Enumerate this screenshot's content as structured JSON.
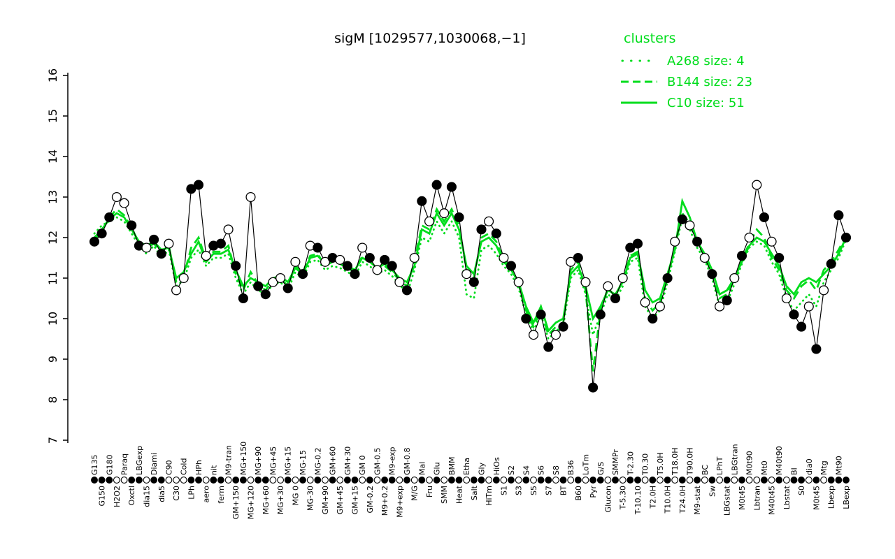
{
  "title": "sigM [1029577,1030068,−1]",
  "legend": {
    "title": "clusters",
    "entries": [
      {
        "label": "A268 size: 4",
        "style": "dotted"
      },
      {
        "label": "B144 size: 23",
        "style": "dashed"
      },
      {
        "label": "C10 size: 51",
        "style": "solid"
      }
    ]
  },
  "colors": {
    "cluster_green": "#00dd1c",
    "probe_line": "#000000",
    "point_filled": "#000000",
    "point_open": "#ffffff",
    "background": "#ffffff"
  },
  "chart_data": {
    "type": "line",
    "title": "sigM [1029577,1030068,−1]",
    "ylim": [
      7,
      16
    ],
    "yticks": [
      7,
      8,
      9,
      10,
      11,
      12,
      13,
      14,
      15,
      16
    ],
    "grid": false,
    "legend_position": "top-right",
    "categories": [
      "G135",
      "G150",
      "G180",
      "H2O2",
      "Paraq",
      "Oxctl",
      "LBGexp",
      "dia15",
      "Diami",
      "dia5",
      "C90",
      "C30",
      "Cold",
      "LPh",
      "HPh",
      "aero",
      "nit",
      "ferm",
      "M9-tran",
      "GM+150",
      "MG+150",
      "MG+120",
      "MG+90",
      "MG+60",
      "MG+45",
      "MG+30",
      "MG+15",
      "MG 0",
      "MG-15",
      "MG-30",
      "MG-0.2",
      "GM+90",
      "GM+60",
      "GM+45",
      "GM+30",
      "GM+15",
      "GM 0",
      "GM-0.2",
      "GM-0.5",
      "M9+0.2",
      "M9-exp",
      "M9+exp",
      "GM-0.8",
      "M/G",
      "Mal",
      "Fru",
      "Glu",
      "SMM",
      "BMM",
      "Heat",
      "Etha",
      "Salt",
      "Gly",
      "HiTm",
      "HiOs",
      "S1",
      "S2",
      "S3",
      "S4",
      "S5",
      "S6",
      "S7",
      "S8",
      "BT",
      "B36",
      "B60",
      "LoTm",
      "Pyr",
      "G/S",
      "Glucon",
      "SMMPr",
      "T-5.30",
      "T-2.30",
      "T-10.10",
      "T0.30",
      "T2.0H",
      "T5.0H",
      "T10.0H",
      "T18.0H",
      "T24.0H",
      "T90.0H",
      "M9-stat",
      "BC",
      "Sw",
      "LPhT",
      "LBGstat",
      "LBGtran",
      "M0t45",
      "M0t90",
      "Lbtran",
      "Mt0",
      "M40t45",
      "M40t90",
      "Lbstat",
      "BI",
      "S0",
      "dia0",
      "M0t45",
      "Mtg",
      "Lbexp",
      "Mt90",
      "LBexp"
    ],
    "point_fill": [
      "f",
      "f",
      "f",
      "o",
      "o",
      "f",
      "f",
      "o",
      "f",
      "f",
      "o",
      "o",
      "o",
      "f",
      "f",
      "o",
      "f",
      "f",
      "o",
      "f",
      "f",
      "o",
      "f",
      "f",
      "o",
      "o",
      "f",
      "o",
      "f",
      "o",
      "f",
      "o",
      "f",
      "o",
      "f",
      "f",
      "o",
      "f",
      "o",
      "f",
      "f",
      "o",
      "f",
      "o",
      "f",
      "o",
      "f",
      "o",
      "f",
      "f",
      "o",
      "f",
      "f",
      "o",
      "f",
      "o",
      "f",
      "o",
      "f",
      "o",
      "f",
      "f",
      "o",
      "f",
      "o",
      "f",
      "o",
      "f",
      "f",
      "o",
      "f",
      "o",
      "f",
      "f",
      "o",
      "f",
      "o",
      "f",
      "o",
      "f",
      "o",
      "f",
      "o",
      "f",
      "o",
      "f",
      "o",
      "f",
      "o",
      "o",
      "f",
      "o",
      "f",
      "o",
      "f",
      "f",
      "o",
      "f",
      "o",
      "f",
      "f",
      "f"
    ],
    "series": [
      {
        "name": "sigM probe",
        "style": "points",
        "values": [
          11.9,
          12.1,
          12.5,
          13.0,
          12.85,
          12.3,
          11.8,
          11.75,
          11.95,
          11.6,
          11.85,
          10.7,
          11.0,
          13.2,
          13.3,
          11.55,
          11.8,
          11.85,
          12.2,
          11.3,
          10.5,
          13.0,
          10.8,
          10.6,
          10.9,
          11.0,
          10.75,
          11.4,
          11.1,
          11.8,
          11.75,
          11.4,
          11.5,
          11.45,
          11.3,
          11.1,
          11.75,
          11.5,
          11.2,
          11.45,
          11.3,
          10.9,
          10.7,
          11.5,
          12.9,
          12.4,
          13.3,
          12.6,
          13.25,
          12.5,
          11.1,
          10.9,
          12.2,
          12.4,
          12.1,
          11.5,
          11.3,
          10.9,
          10.0,
          9.6,
          10.1,
          9.3,
          9.6,
          9.8,
          11.4,
          11.5,
          10.9,
          8.3,
          10.1,
          10.8,
          10.5,
          11.0,
          11.75,
          11.85,
          10.4,
          10.0,
          10.3,
          11.0,
          11.9,
          12.45,
          12.3,
          11.9,
          11.5,
          11.1,
          10.3,
          10.45,
          11.0,
          11.55,
          12.0,
          13.3,
          12.5,
          11.9,
          11.5,
          10.5,
          10.1,
          9.8,
          10.3,
          9.25,
          10.7,
          11.35,
          12.55,
          12.0
        ]
      },
      {
        "name": "A268",
        "style": "dotted",
        "values": [
          12.1,
          12.3,
          12.4,
          12.5,
          12.4,
          12.1,
          11.8,
          11.6,
          11.8,
          11.5,
          11.7,
          10.8,
          10.95,
          11.5,
          11.7,
          11.3,
          11.5,
          11.5,
          11.6,
          11.0,
          10.6,
          10.9,
          10.7,
          10.6,
          10.85,
          10.9,
          10.7,
          11.15,
          11.0,
          11.4,
          11.45,
          11.2,
          11.3,
          11.25,
          11.15,
          11.05,
          11.4,
          11.3,
          11.1,
          11.2,
          11.05,
          10.85,
          10.6,
          11.2,
          12.0,
          11.9,
          12.4,
          12.1,
          12.4,
          12.0,
          10.6,
          10.5,
          11.7,
          11.8,
          11.6,
          11.3,
          11.1,
          10.75,
          10.1,
          9.7,
          10.1,
          9.5,
          9.7,
          9.8,
          11.0,
          11.2,
          10.6,
          9.6,
          10.1,
          10.6,
          10.45,
          10.8,
          11.4,
          11.5,
          10.3,
          10.0,
          10.2,
          10.9,
          11.65,
          12.5,
          12.2,
          11.75,
          11.45,
          11.0,
          10.3,
          10.4,
          10.85,
          11.35,
          11.75,
          11.9,
          11.8,
          11.4,
          11.1,
          10.5,
          10.2,
          10.4,
          10.6,
          10.3,
          10.9,
          11.2,
          11.5,
          11.95
        ]
      },
      {
        "name": "B144",
        "style": "dashed",
        "values": [
          11.95,
          12.15,
          12.5,
          12.7,
          12.55,
          12.25,
          11.85,
          11.75,
          11.85,
          11.65,
          11.8,
          10.9,
          11.05,
          11.75,
          12.0,
          11.45,
          11.65,
          11.65,
          11.8,
          11.1,
          10.7,
          11.15,
          10.85,
          10.7,
          10.95,
          11.0,
          10.8,
          11.3,
          11.15,
          11.55,
          11.6,
          11.3,
          11.4,
          11.35,
          11.25,
          11.15,
          11.55,
          11.45,
          11.2,
          11.3,
          11.15,
          10.95,
          10.8,
          11.4,
          12.3,
          12.2,
          12.7,
          12.4,
          12.7,
          12.3,
          11.2,
          11.0,
          12.0,
          12.1,
          11.9,
          11.45,
          11.25,
          10.85,
          10.2,
          9.8,
          10.2,
          9.6,
          9.8,
          9.9,
          11.2,
          11.4,
          10.7,
          8.7,
          10.2,
          10.75,
          10.55,
          10.95,
          11.55,
          11.65,
          10.5,
          10.2,
          10.4,
          11.0,
          11.75,
          12.6,
          12.35,
          11.85,
          11.55,
          11.1,
          10.5,
          10.6,
          10.95,
          11.45,
          11.85,
          12.2,
          12.0,
          11.5,
          11.2,
          10.7,
          10.5,
          10.8,
          10.95,
          10.7,
          11.2,
          11.4,
          11.7,
          12.05
        ]
      },
      {
        "name": "C10",
        "style": "solid",
        "values": [
          12.0,
          12.2,
          12.45,
          12.6,
          12.5,
          12.2,
          11.9,
          11.8,
          11.9,
          11.7,
          11.75,
          11.0,
          11.15,
          11.6,
          11.9,
          11.4,
          11.6,
          11.6,
          11.7,
          11.2,
          10.8,
          11.0,
          10.9,
          10.8,
          11.0,
          11.05,
          10.9,
          11.25,
          11.1,
          11.5,
          11.55,
          11.35,
          11.45,
          11.4,
          11.3,
          11.2,
          11.5,
          11.4,
          11.25,
          11.35,
          11.2,
          11.0,
          10.9,
          11.3,
          12.2,
          12.1,
          12.6,
          12.3,
          12.6,
          12.2,
          11.3,
          11.1,
          11.9,
          12.0,
          11.8,
          11.4,
          11.2,
          10.9,
          10.3,
          9.9,
          10.3,
          9.7,
          9.9,
          10.0,
          11.1,
          11.3,
          10.8,
          10.0,
          10.3,
          10.7,
          10.6,
          10.9,
          11.5,
          11.6,
          10.7,
          10.4,
          10.5,
          11.1,
          11.7,
          12.9,
          12.5,
          11.9,
          11.6,
          11.2,
          10.6,
          10.7,
          11.0,
          11.4,
          11.8,
          12.0,
          11.9,
          11.6,
          11.3,
          10.8,
          10.6,
          10.9,
          11.0,
          10.9,
          11.1,
          11.3,
          11.6,
          12.0
        ]
      }
    ]
  }
}
